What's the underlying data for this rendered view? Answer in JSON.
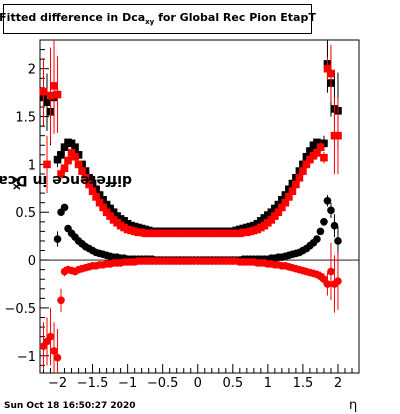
{
  "title": {
    "main": "Fitted difference in Dca",
    "subscript": "xy",
    "suffix": " for Global Rec Pion EtapT"
  },
  "axis": {
    "ylabel_main": "difference in Dca",
    "ylabel_sub": "XY",
    "xlabel": "η"
  },
  "datestamp": "Sun Oct 18 16:50:27 2020",
  "colors": {
    "series_black": "#000000",
    "series_red": "#ff0000"
  },
  "chart_data": {
    "type": "scatter",
    "xlim": [
      -2.25,
      2.3
    ],
    "ylim": [
      -1.18,
      2.3
    ],
    "xticks": [
      -2,
      -1.5,
      -1,
      -0.5,
      0,
      0.5,
      1,
      1.5,
      2
    ],
    "xtick_labels": [
      "−2",
      "−1.5",
      "−1",
      "−0.5",
      "0",
      "0.5",
      "1",
      "1.5",
      "2"
    ],
    "yticks": [
      -1,
      -0.5,
      0,
      0.5,
      1,
      1.5,
      2
    ],
    "ytick_labels": [
      "−1",
      "−0.5",
      "0",
      "0.5",
      "1",
      "1.5",
      "2"
    ],
    "grid": false,
    "series": [
      {
        "marker": "square",
        "color": "#000000",
        "x": [
          -2.2,
          -2.15,
          -2.1,
          -2.05,
          -2.0,
          -1.95,
          -1.9,
          -1.85,
          -1.8,
          -1.75,
          -1.7,
          -1.65,
          -1.6,
          -1.55,
          -1.5,
          -1.45,
          -1.4,
          -1.35,
          -1.3,
          -1.25,
          -1.2,
          -1.15,
          -1.1,
          -1.05,
          -1.0,
          -0.95,
          -0.9,
          -0.85,
          -0.8,
          -0.75,
          -0.7,
          -0.65,
          -0.6,
          -0.55,
          -0.5,
          -0.45,
          -0.4,
          -0.35,
          -0.3,
          -0.25,
          -0.2,
          -0.15,
          -0.1,
          -0.05,
          0.0,
          0.05,
          0.1,
          0.15,
          0.2,
          0.25,
          0.3,
          0.35,
          0.4,
          0.45,
          0.5,
          0.55,
          0.6,
          0.65,
          0.7,
          0.75,
          0.8,
          0.85,
          0.9,
          0.95,
          1.0,
          1.05,
          1.1,
          1.15,
          1.2,
          1.25,
          1.3,
          1.35,
          1.4,
          1.45,
          1.5,
          1.55,
          1.6,
          1.65,
          1.7,
          1.75,
          1.8,
          1.85,
          1.9,
          1.95,
          2.0
        ],
        "y": [
          1.7,
          1.65,
          1.55,
          1.7,
          1.05,
          1.1,
          1.18,
          1.23,
          1.22,
          1.18,
          1.1,
          1.0,
          0.93,
          0.86,
          0.8,
          0.74,
          0.68,
          0.63,
          0.58,
          0.54,
          0.5,
          0.46,
          0.43,
          0.41,
          0.38,
          0.36,
          0.35,
          0.34,
          0.33,
          0.32,
          0.31,
          0.3,
          0.3,
          0.3,
          0.3,
          0.3,
          0.3,
          0.3,
          0.3,
          0.3,
          0.3,
          0.3,
          0.3,
          0.3,
          0.3,
          0.3,
          0.3,
          0.3,
          0.3,
          0.3,
          0.3,
          0.3,
          0.3,
          0.3,
          0.3,
          0.31,
          0.32,
          0.33,
          0.34,
          0.35,
          0.36,
          0.38,
          0.41,
          0.44,
          0.47,
          0.5,
          0.54,
          0.58,
          0.63,
          0.68,
          0.74,
          0.8,
          0.86,
          0.93,
          1.0,
          1.08,
          1.14,
          1.2,
          1.23,
          1.2,
          1.22,
          2.05,
          1.85,
          1.58,
          1.56
        ],
        "yerr": [
          0.3,
          0.3,
          0.35,
          0.3,
          0.08,
          0.05,
          0.04,
          0.03,
          0.03,
          0.02,
          0.02,
          0.02,
          0.02,
          0.02,
          0.02,
          0.02,
          0.02,
          0.02,
          0.02,
          0.02,
          0.02,
          0.02,
          0.02,
          0.02,
          0.02,
          0.02,
          0.02,
          0.02,
          0.02,
          0.02,
          0.02,
          0.02,
          0.02,
          0.02,
          0.02,
          0.02,
          0.02,
          0.02,
          0.02,
          0.02,
          0.02,
          0.02,
          0.02,
          0.02,
          0.02,
          0.02,
          0.02,
          0.02,
          0.02,
          0.02,
          0.02,
          0.02,
          0.02,
          0.02,
          0.02,
          0.02,
          0.02,
          0.02,
          0.02,
          0.02,
          0.02,
          0.02,
          0.02,
          0.02,
          0.02,
          0.02,
          0.02,
          0.02,
          0.02,
          0.02,
          0.02,
          0.02,
          0.02,
          0.02,
          0.02,
          0.02,
          0.03,
          0.03,
          0.04,
          0.05,
          0.08,
          0.3,
          0.35,
          0.4,
          0.4
        ]
      },
      {
        "marker": "square",
        "color": "#ff0000",
        "x": [
          -2.2,
          -2.15,
          -2.1,
          -2.05,
          -2.0,
          -1.95,
          -1.9,
          -1.85,
          -1.8,
          -1.75,
          -1.7,
          -1.65,
          -1.6,
          -1.55,
          -1.5,
          -1.45,
          -1.4,
          -1.35,
          -1.3,
          -1.25,
          -1.2,
          -1.15,
          -1.1,
          -1.05,
          -1.0,
          -0.95,
          -0.9,
          -0.85,
          -0.8,
          -0.75,
          -0.7,
          -0.65,
          -0.6,
          -0.55,
          -0.5,
          -0.45,
          -0.4,
          -0.35,
          -0.3,
          -0.25,
          -0.2,
          -0.15,
          -0.1,
          -0.05,
          0.0,
          0.05,
          0.1,
          0.15,
          0.2,
          0.25,
          0.3,
          0.35,
          0.4,
          0.45,
          0.5,
          0.55,
          0.6,
          0.65,
          0.7,
          0.75,
          0.8,
          0.85,
          0.9,
          0.95,
          1.0,
          1.05,
          1.1,
          1.15,
          1.2,
          1.25,
          1.3,
          1.35,
          1.4,
          1.45,
          1.5,
          1.55,
          1.6,
          1.65,
          1.7,
          1.75,
          1.8,
          1.85,
          1.9,
          1.95,
          2.0
        ],
        "y": [
          1.76,
          1.0,
          1.72,
          1.82,
          1.73,
          0.9,
          0.96,
          1.04,
          1.12,
          1.08,
          1.0,
          0.93,
          0.86,
          0.79,
          0.72,
          0.66,
          0.6,
          0.55,
          0.5,
          0.46,
          0.42,
          0.39,
          0.36,
          0.34,
          0.32,
          0.31,
          0.3,
          0.29,
          0.29,
          0.28,
          0.28,
          0.28,
          0.28,
          0.28,
          0.28,
          0.28,
          0.28,
          0.28,
          0.28,
          0.28,
          0.28,
          0.28,
          0.28,
          0.28,
          0.28,
          0.28,
          0.28,
          0.28,
          0.28,
          0.28,
          0.28,
          0.28,
          0.28,
          0.28,
          0.28,
          0.28,
          0.28,
          0.29,
          0.29,
          0.3,
          0.31,
          0.32,
          0.34,
          0.36,
          0.39,
          0.42,
          0.46,
          0.5,
          0.55,
          0.6,
          0.66,
          0.72,
          0.79,
          0.86,
          0.93,
          1.0,
          1.05,
          1.09,
          1.12,
          1.18,
          1.07,
          2.0,
          1.95,
          1.3,
          1.3
        ],
        "yerr": [
          0.35,
          0.3,
          0.5,
          0.5,
          0.4,
          0.06,
          0.05,
          0.04,
          0.03,
          0.03,
          0.02,
          0.02,
          0.02,
          0.02,
          0.02,
          0.02,
          0.02,
          0.02,
          0.02,
          0.02,
          0.02,
          0.02,
          0.02,
          0.02,
          0.02,
          0.02,
          0.02,
          0.02,
          0.02,
          0.02,
          0.02,
          0.02,
          0.02,
          0.02,
          0.02,
          0.02,
          0.02,
          0.02,
          0.02,
          0.02,
          0.02,
          0.02,
          0.02,
          0.02,
          0.02,
          0.02,
          0.02,
          0.02,
          0.02,
          0.02,
          0.02,
          0.02,
          0.02,
          0.02,
          0.02,
          0.02,
          0.02,
          0.02,
          0.02,
          0.02,
          0.02,
          0.02,
          0.02,
          0.02,
          0.02,
          0.02,
          0.02,
          0.02,
          0.02,
          0.02,
          0.02,
          0.02,
          0.02,
          0.02,
          0.02,
          0.02,
          0.03,
          0.03,
          0.04,
          0.05,
          0.06,
          0.12,
          0.3,
          0.4,
          0.4
        ]
      },
      {
        "marker": "circle",
        "color": "#000000",
        "x": [
          -2.0,
          -1.95,
          -1.9,
          -1.85,
          -1.8,
          -1.75,
          -1.7,
          -1.65,
          -1.6,
          -1.55,
          -1.5,
          -1.45,
          -1.4,
          -1.35,
          -1.3,
          -1.25,
          -1.2,
          -1.15,
          -1.1,
          -1.05,
          -1.0,
          -0.95,
          -0.9,
          -0.85,
          -0.8,
          -0.75,
          -0.7,
          -0.65,
          -0.6,
          -0.55,
          -0.5,
          -0.45,
          -0.4,
          -0.35,
          -0.3,
          -0.25,
          -0.2,
          -0.15,
          -0.1,
          -0.05,
          0.0,
          0.05,
          0.1,
          0.15,
          0.2,
          0.25,
          0.3,
          0.35,
          0.4,
          0.45,
          0.5,
          0.55,
          0.6,
          0.65,
          0.7,
          0.75,
          0.8,
          0.85,
          0.9,
          0.95,
          1.0,
          1.05,
          1.1,
          1.15,
          1.2,
          1.25,
          1.3,
          1.35,
          1.4,
          1.45,
          1.5,
          1.55,
          1.6,
          1.65,
          1.7,
          1.75,
          1.8,
          1.85,
          1.9,
          1.95,
          2.0
        ],
        "y": [
          0.22,
          0.5,
          0.55,
          0.33,
          0.28,
          0.24,
          0.2,
          0.17,
          0.14,
          0.12,
          0.1,
          0.08,
          0.07,
          0.06,
          0.05,
          0.04,
          0.03,
          0.03,
          0.02,
          0.02,
          0.01,
          0.01,
          0.01,
          0.01,
          0.01,
          0.01,
          0.01,
          0.01,
          0.0,
          0.0,
          0.0,
          0.0,
          0.0,
          0.0,
          0.0,
          0.0,
          0.0,
          0.0,
          0.0,
          0.0,
          0.0,
          0.0,
          0.0,
          0.0,
          0.0,
          0.0,
          0.0,
          0.0,
          0.0,
          0.0,
          0.0,
          0.0,
          0.0,
          0.01,
          0.01,
          0.01,
          0.01,
          0.01,
          0.01,
          0.01,
          0.01,
          0.02,
          0.02,
          0.03,
          0.03,
          0.04,
          0.05,
          0.06,
          0.07,
          0.08,
          0.1,
          0.12,
          0.15,
          0.18,
          0.22,
          0.3,
          0.4,
          0.62,
          0.52,
          0.36,
          0.2
        ],
        "yerr": [
          0.08,
          0.04,
          0.03,
          0.03,
          0.02,
          0.02,
          0.02,
          0.02,
          0.02,
          0.02,
          0.02,
          0.02,
          0.02,
          0.02,
          0.02,
          0.02,
          0.02,
          0.02,
          0.02,
          0.02,
          0.02,
          0.02,
          0.02,
          0.02,
          0.02,
          0.02,
          0.02,
          0.02,
          0.02,
          0.02,
          0.02,
          0.02,
          0.02,
          0.02,
          0.02,
          0.02,
          0.02,
          0.02,
          0.02,
          0.02,
          0.02,
          0.02,
          0.02,
          0.02,
          0.02,
          0.02,
          0.02,
          0.02,
          0.02,
          0.02,
          0.02,
          0.02,
          0.02,
          0.02,
          0.02,
          0.02,
          0.02,
          0.02,
          0.02,
          0.02,
          0.02,
          0.02,
          0.02,
          0.02,
          0.02,
          0.02,
          0.02,
          0.02,
          0.02,
          0.02,
          0.02,
          0.02,
          0.02,
          0.02,
          0.03,
          0.03,
          0.04,
          0.06,
          0.08,
          0.12,
          0.15
        ]
      },
      {
        "marker": "circle",
        "color": "#ff0000",
        "x": [
          -2.2,
          -2.15,
          -2.1,
          -2.05,
          -2.0,
          -1.95,
          -1.9,
          -1.85,
          -1.8,
          -1.75,
          -1.7,
          -1.65,
          -1.6,
          -1.55,
          -1.5,
          -1.45,
          -1.4,
          -1.35,
          -1.3,
          -1.25,
          -1.2,
          -1.15,
          -1.1,
          -1.05,
          -1.0,
          -0.95,
          -0.9,
          -0.85,
          -0.8,
          -0.75,
          -0.7,
          -0.65,
          -0.6,
          -0.55,
          -0.5,
          -0.45,
          -0.4,
          -0.35,
          -0.3,
          -0.25,
          -0.2,
          -0.15,
          -0.1,
          -0.05,
          0.0,
          0.05,
          0.1,
          0.15,
          0.2,
          0.25,
          0.3,
          0.35,
          0.4,
          0.45,
          0.5,
          0.55,
          0.6,
          0.65,
          0.7,
          0.75,
          0.8,
          0.85,
          0.9,
          0.95,
          1.0,
          1.05,
          1.1,
          1.15,
          1.2,
          1.25,
          1.3,
          1.35,
          1.4,
          1.45,
          1.5,
          1.55,
          1.6,
          1.65,
          1.7,
          1.75,
          1.8,
          1.85,
          1.9,
          1.95,
          2.0
        ],
        "y": [
          -0.9,
          -0.85,
          -0.8,
          -0.95,
          -1.02,
          -0.42,
          -0.12,
          -0.1,
          -0.11,
          -0.12,
          -0.1,
          -0.09,
          -0.08,
          -0.07,
          -0.06,
          -0.06,
          -0.05,
          -0.05,
          -0.04,
          -0.04,
          -0.03,
          -0.03,
          -0.03,
          -0.02,
          -0.02,
          -0.02,
          -0.02,
          -0.01,
          -0.01,
          -0.01,
          -0.01,
          -0.01,
          -0.01,
          -0.01,
          -0.01,
          -0.01,
          -0.01,
          -0.01,
          -0.01,
          -0.01,
          -0.01,
          -0.01,
          -0.01,
          -0.01,
          -0.01,
          -0.01,
          -0.01,
          -0.01,
          -0.01,
          -0.01,
          -0.01,
          -0.01,
          -0.01,
          -0.01,
          -0.01,
          -0.01,
          -0.02,
          -0.02,
          -0.02,
          -0.02,
          -0.02,
          -0.03,
          -0.03,
          -0.03,
          -0.04,
          -0.04,
          -0.05,
          -0.05,
          -0.06,
          -0.06,
          -0.07,
          -0.08,
          -0.09,
          -0.1,
          -0.11,
          -0.12,
          -0.13,
          -0.14,
          -0.15,
          -0.17,
          -0.2,
          -0.25,
          -0.12,
          -0.25,
          -0.22
        ],
        "yerr": [
          0.25,
          0.25,
          0.3,
          0.3,
          0.3,
          0.12,
          0.05,
          0.04,
          0.03,
          0.03,
          0.02,
          0.02,
          0.02,
          0.02,
          0.02,
          0.02,
          0.02,
          0.02,
          0.02,
          0.02,
          0.02,
          0.02,
          0.02,
          0.02,
          0.02,
          0.02,
          0.02,
          0.02,
          0.02,
          0.02,
          0.02,
          0.02,
          0.02,
          0.02,
          0.02,
          0.02,
          0.02,
          0.02,
          0.02,
          0.02,
          0.02,
          0.02,
          0.02,
          0.02,
          0.02,
          0.02,
          0.02,
          0.02,
          0.02,
          0.02,
          0.02,
          0.02,
          0.02,
          0.02,
          0.02,
          0.02,
          0.02,
          0.02,
          0.02,
          0.02,
          0.02,
          0.02,
          0.02,
          0.02,
          0.02,
          0.02,
          0.02,
          0.02,
          0.02,
          0.02,
          0.02,
          0.02,
          0.02,
          0.02,
          0.02,
          0.02,
          0.03,
          0.03,
          0.04,
          0.05,
          0.06,
          0.12,
          0.3,
          0.3,
          0.3
        ]
      }
    ]
  }
}
